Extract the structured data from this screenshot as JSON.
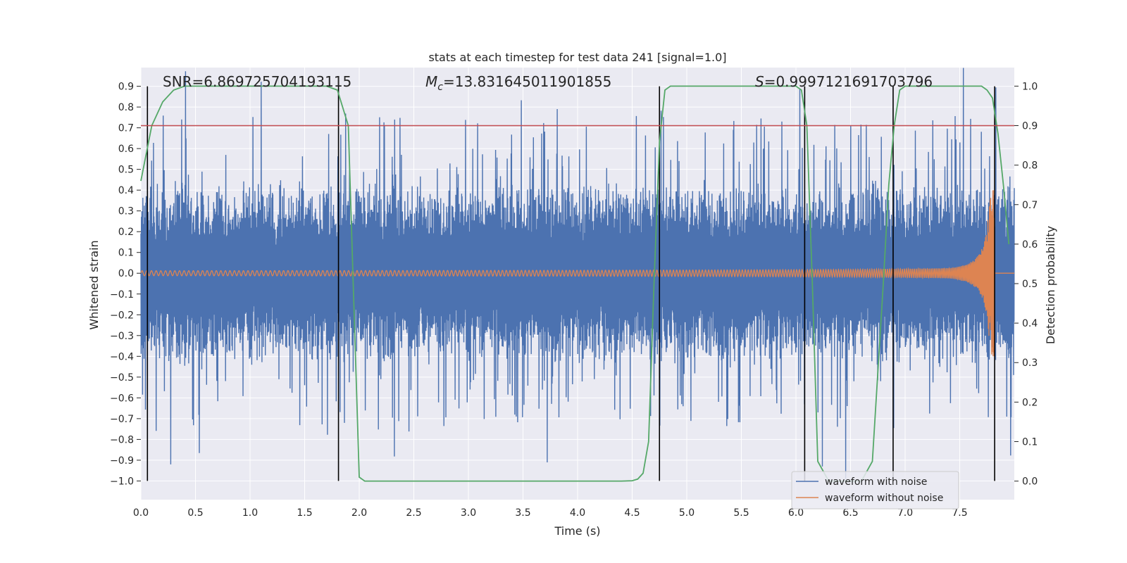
{
  "chart_data": {
    "type": "line",
    "title": "stats at each timestep for test data 241 [signal=1.0]",
    "xlabel": "Time (s)",
    "ylabel": "Whitened strain",
    "y2label": "Detection probability",
    "xlim": [
      0.0,
      8.0
    ],
    "ylim": [
      -1.09,
      0.99
    ],
    "y2lim": [
      -0.047,
      1.047
    ],
    "grid": true,
    "legend_position": "lower-right",
    "x_ticks": [
      "0.0",
      "0.5",
      "1.0",
      "1.5",
      "2.0",
      "2.5",
      "3.0",
      "3.5",
      "4.0",
      "4.5",
      "5.0",
      "5.5",
      "6.0",
      "6.5",
      "7.0",
      "7.5"
    ],
    "y_ticks": [
      "0.9",
      "0.8",
      "0.7",
      "0.6",
      "0.5",
      "0.4",
      "0.3",
      "0.2",
      "0.1",
      "0.0",
      "−0.1",
      "−0.2",
      "−0.3",
      "−0.4",
      "−0.5",
      "−0.6",
      "−0.7",
      "−0.8",
      "−0.9",
      "−1.0"
    ],
    "y2_ticks": [
      "1.0",
      "0.9",
      "0.8",
      "0.7",
      "0.6",
      "0.5",
      "0.4",
      "0.3",
      "0.2",
      "0.1",
      "0.0"
    ],
    "annotations": {
      "snr": "SNR=6.869725704193115",
      "mc_symbol": "M",
      "mc_sub": "c",
      "mc_value": "=13.831645011901855",
      "s_symbol": "S",
      "s_value": "=0.9997121691703796"
    },
    "legend": [
      "waveform with noise",
      "waveform without noise"
    ],
    "colors": {
      "noise": "#4c72b0",
      "clean": "#dd8452",
      "probability": "#55a868",
      "threshold": "#c44e52",
      "markers": "#000000",
      "background": "#eaeaf2",
      "grid": "#ffffff"
    },
    "series": [
      {
        "name": "waveform with noise",
        "description_envelope_peak_abs": 0.9
      },
      {
        "name": "waveform without noise",
        "chirp_end_time": 7.82,
        "amplitude_start": 0.012,
        "amplitude_end": 0.4
      }
    ],
    "detection_probability": {
      "x": [
        0.0,
        0.1,
        0.2,
        0.3,
        0.4,
        0.5,
        1.7,
        1.8,
        1.9,
        2.0,
        2.05,
        2.1,
        4.4,
        4.5,
        4.55,
        4.6,
        4.65,
        4.7,
        4.75,
        4.8,
        4.85,
        4.9,
        6.0,
        6.05,
        6.1,
        6.15,
        6.2,
        6.3,
        6.4,
        6.5,
        6.6,
        6.7,
        6.8,
        6.85,
        6.9,
        6.95,
        7.0,
        7.7,
        7.75,
        7.8,
        7.85,
        7.9,
        7.95
      ],
      "y": [
        0.76,
        0.9,
        0.96,
        0.99,
        1.0,
        1.0,
        1.0,
        0.99,
        0.9,
        0.01,
        0.0,
        0.0,
        0.0,
        0.001,
        0.005,
        0.02,
        0.1,
        0.5,
        0.86,
        0.99,
        1.0,
        1.0,
        1.0,
        0.99,
        0.9,
        0.5,
        0.05,
        0.0,
        0.0,
        0.0,
        0.0,
        0.05,
        0.5,
        0.75,
        0.9,
        0.99,
        1.0,
        1.0,
        0.99,
        0.97,
        0.88,
        0.75,
        0.6
      ]
    },
    "threshold": 0.9,
    "markers_x": [
      0.06,
      1.81,
      4.75,
      6.08,
      6.89,
      7.82
    ]
  }
}
